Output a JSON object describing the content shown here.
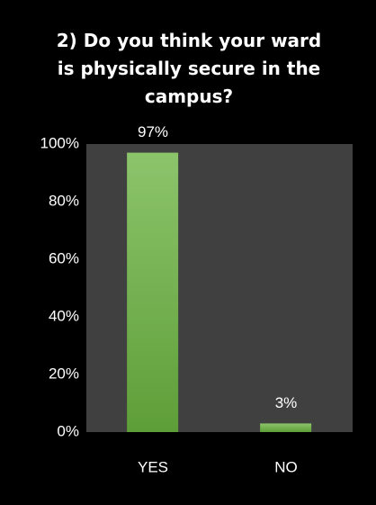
{
  "chart_data": {
    "type": "bar",
    "title": "2) Do you think your ward is physically secure in the campus?",
    "categories": [
      "YES",
      "NO"
    ],
    "values": [
      97,
      3
    ],
    "value_labels": [
      "97%",
      "3%"
    ],
    "color": "#70ad47",
    "ylim": [
      0,
      100
    ],
    "yticks": [
      {
        "value": 0,
        "label": "0%"
      },
      {
        "value": 20,
        "label": "20%"
      },
      {
        "value": 40,
        "label": "40%"
      },
      {
        "value": 60,
        "label": "60%"
      },
      {
        "value": 80,
        "label": "80%"
      },
      {
        "value": 100,
        "label": "100%"
      }
    ]
  }
}
